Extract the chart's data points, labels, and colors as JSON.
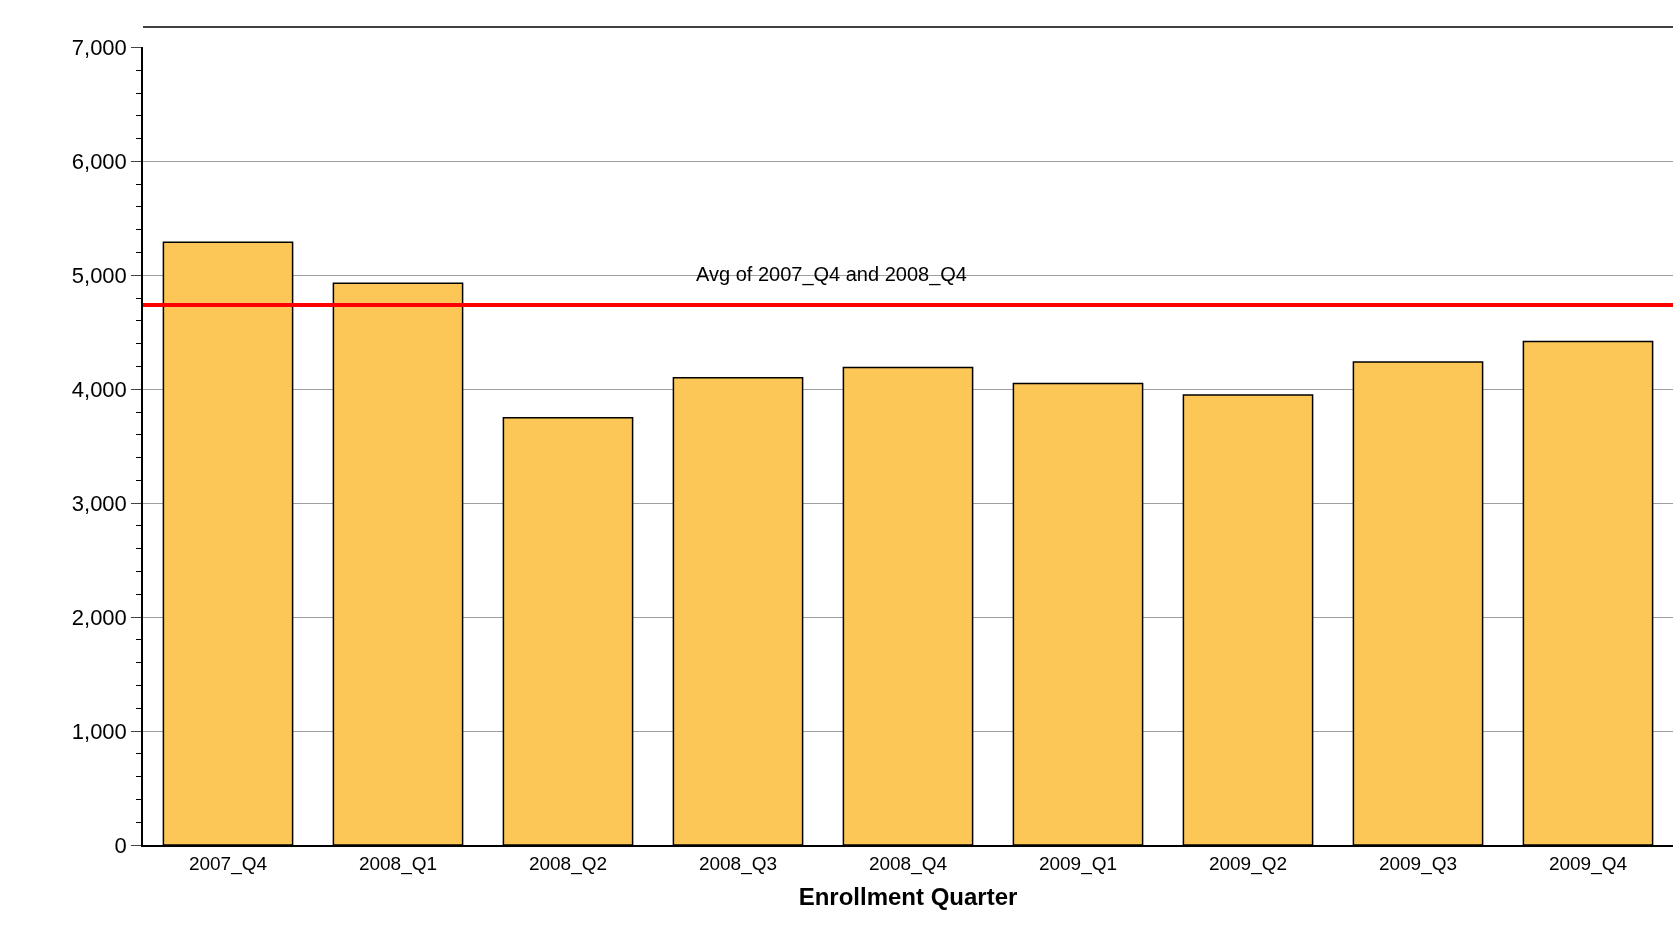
{
  "chart_data": {
    "type": "bar",
    "xlabel": "Enrollment Quarter",
    "categories": [
      "2007_Q4",
      "2008_Q1",
      "2008_Q2",
      "2008_Q3",
      "2008_Q4",
      "2009_Q1",
      "2009_Q2",
      "2009_Q3",
      "2009_Q4"
    ],
    "values": [
      5290,
      4930,
      3750,
      4100,
      4190,
      4050,
      3950,
      4240,
      4420
    ],
    "color": "#fdc758",
    "ylim": [
      0,
      7000
    ],
    "yticks": [
      {
        "value": 0,
        "label": "0"
      },
      {
        "value": 1000,
        "label": "1,000"
      },
      {
        "value": 2000,
        "label": "2,000"
      },
      {
        "value": 3000,
        "label": "3,000"
      },
      {
        "value": 4000,
        "label": "4,000"
      },
      {
        "value": 5000,
        "label": "5,000"
      },
      {
        "value": 6000,
        "label": "6,000"
      },
      {
        "value": 7000,
        "label": "7,000"
      }
    ],
    "grid": "y",
    "ref_lines": [
      {
        "axis": "y",
        "value": 4740,
        "label": "Avg of 2007_Q4 and 2008_Q4",
        "color": "#ff0000",
        "line_style": "solid"
      }
    ]
  }
}
